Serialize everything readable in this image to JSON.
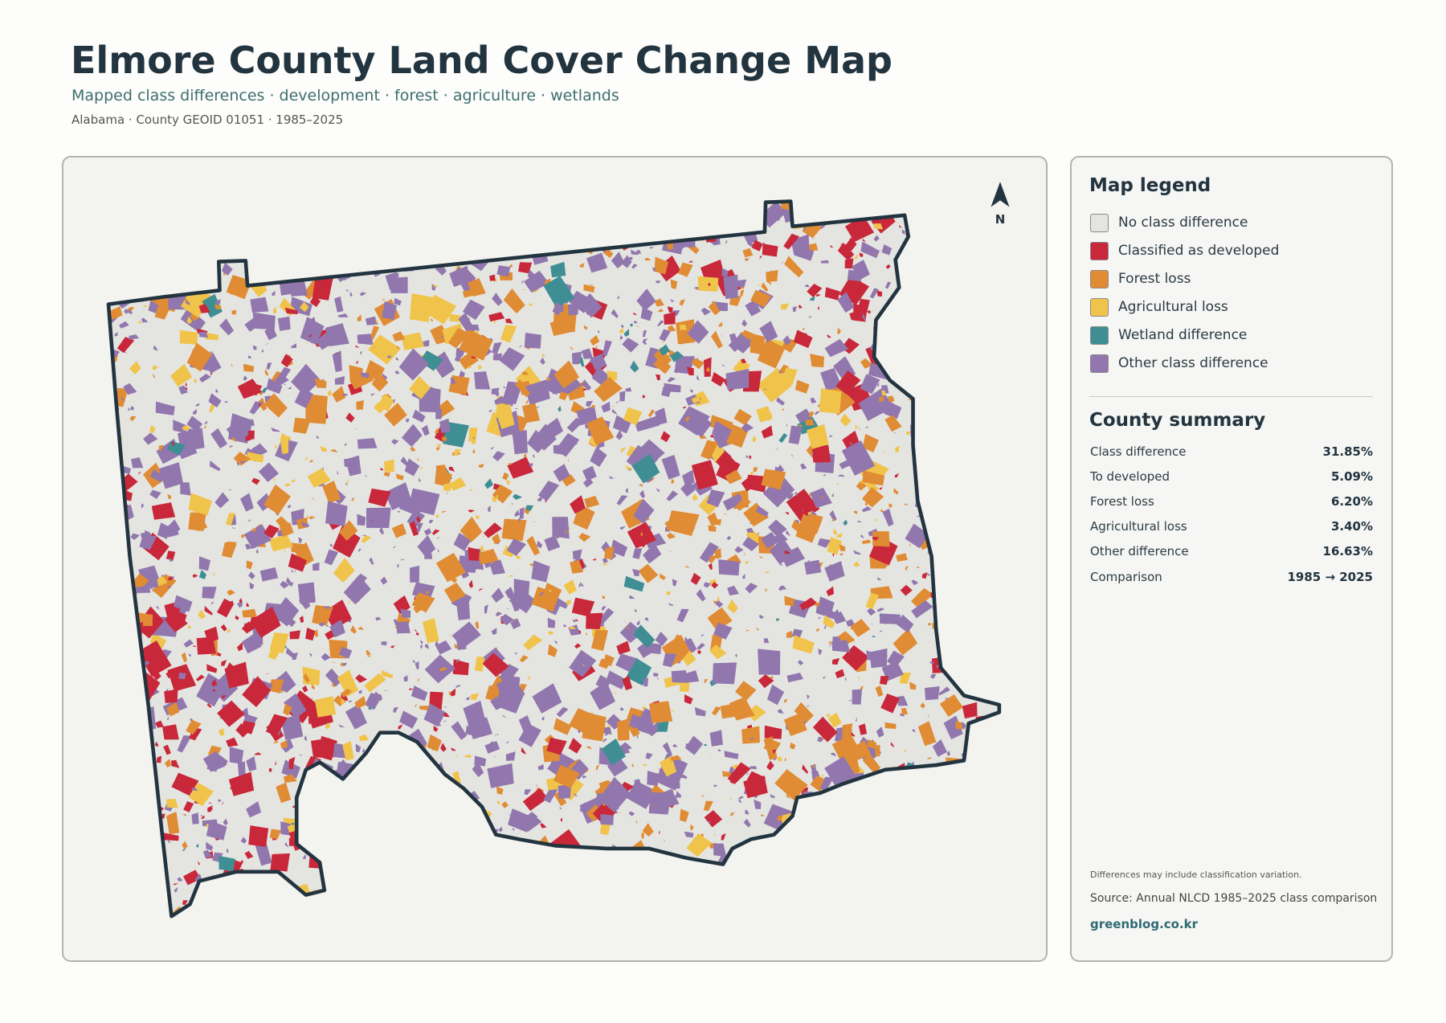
{
  "header": {
    "title": "Elmore County Land Cover Change Map",
    "subtitle": "Mapped class differences · development · forest · agriculture · wetlands",
    "meta": "Alabama · County GEOID 01051 · 1985–2025"
  },
  "map": {
    "north_label": "N"
  },
  "legend": {
    "title": "Map legend",
    "items": [
      {
        "label": "No class difference",
        "color": "#e4e4e1"
      },
      {
        "label": "Classified as developed",
        "color": "#c8283a"
      },
      {
        "label": "Forest loss",
        "color": "#e08c34"
      },
      {
        "label": "Agricultural loss",
        "color": "#f0c34a"
      },
      {
        "label": "Wetland difference",
        "color": "#3f8e94"
      },
      {
        "label": "Other class difference",
        "color": "#9177ad"
      }
    ]
  },
  "summary": {
    "title": "County summary",
    "rows": [
      {
        "label": "Class difference",
        "value": "31.85%"
      },
      {
        "label": "To developed",
        "value": "5.09%"
      },
      {
        "label": "Forest loss",
        "value": "6.20%"
      },
      {
        "label": "Agricultural loss",
        "value": "3.40%"
      },
      {
        "label": "Other difference",
        "value": "16.63%"
      },
      {
        "label": "Comparison",
        "value": "1985 → 2025"
      }
    ]
  },
  "footer": {
    "note": "Differences may include classification variation.",
    "source": "Source: Annual NLCD 1985–2025 class comparison",
    "site": "greenblog.co.kr"
  }
}
